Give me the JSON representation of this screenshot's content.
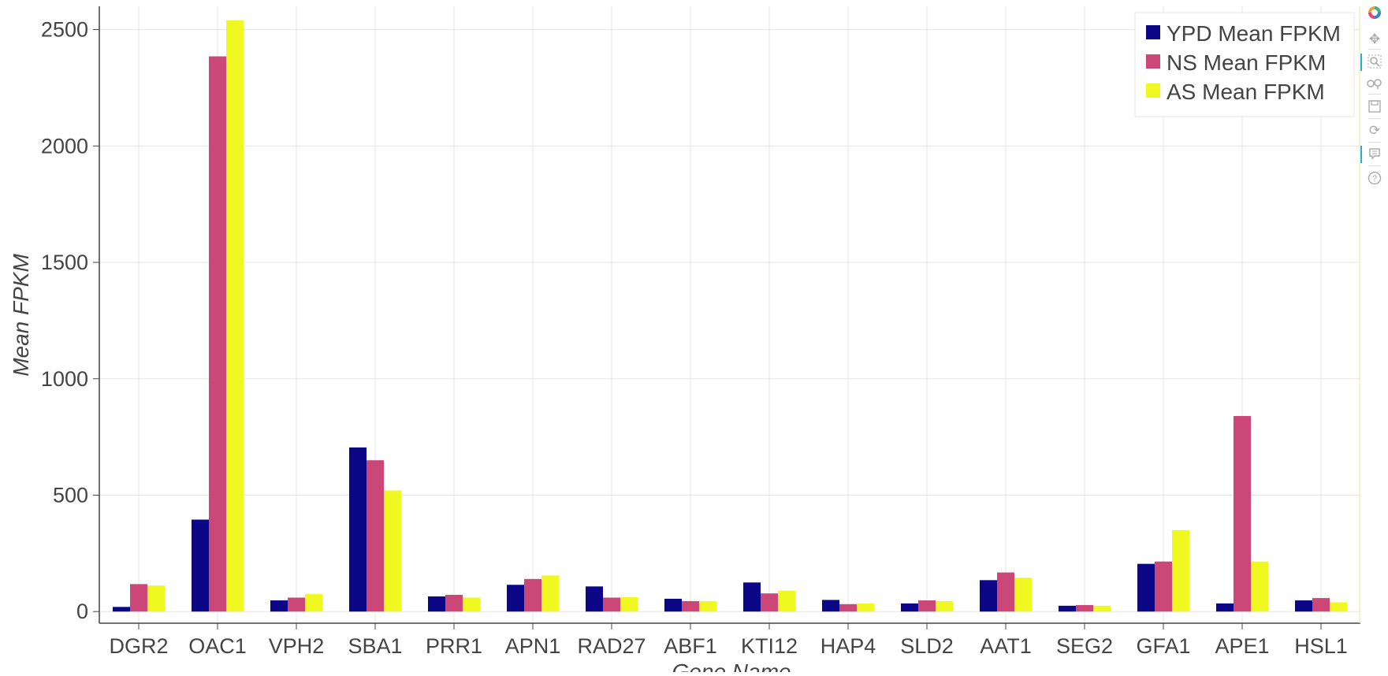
{
  "chart_data": {
    "type": "bar",
    "title": "",
    "xlabel": "Gene Name",
    "ylabel": "Mean FPKM",
    "ylim": [
      -50,
      2600
    ],
    "yticks": [
      "0",
      "500",
      "1000",
      "1500",
      "2000",
      "2500"
    ],
    "ytick_values": [
      0,
      500,
      1000,
      1500,
      2000,
      2500
    ],
    "grid": true,
    "legend_position": "top-right",
    "categories": [
      "DGR2",
      "OAC1",
      "VPH2",
      "SBA1",
      "PRR1",
      "APN1",
      "RAD27",
      "ABF1",
      "KTI12",
      "HAP4",
      "SLD2",
      "AAT1",
      "SEG2",
      "GFA1",
      "APE1",
      "HSL1"
    ],
    "series": [
      {
        "name": "YPD Mean FPKM",
        "color": "#0c0786",
        "values": [
          20,
          395,
          48,
          705,
          65,
          115,
          108,
          55,
          125,
          50,
          35,
          135,
          25,
          205,
          35,
          48
        ]
      },
      {
        "name": "NS Mean FPKM",
        "color": "#cb4778",
        "values": [
          118,
          2385,
          60,
          650,
          72,
          140,
          60,
          45,
          78,
          32,
          48,
          168,
          28,
          215,
          840,
          58
        ]
      },
      {
        "name": "AS Mean FPKM",
        "color": "#eff821",
        "values": [
          112,
          2540,
          75,
          520,
          60,
          155,
          62,
          45,
          90,
          35,
          45,
          145,
          25,
          350,
          215,
          40
        ]
      }
    ]
  },
  "toolbar": {
    "tools": [
      "bokeh-logo-icon",
      "pan-icon",
      "box-zoom-icon",
      "wheel-zoom-icon",
      "save-icon",
      "reset-icon",
      "hover-icon",
      "help-icon"
    ]
  }
}
